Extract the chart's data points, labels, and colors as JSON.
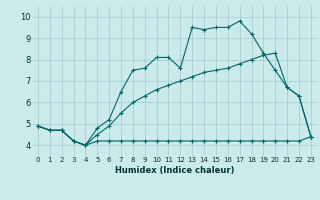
{
  "xlabel": "Humidex (Indice chaleur)",
  "xlim": [
    -0.5,
    23.5
  ],
  "ylim": [
    3.5,
    10.5
  ],
  "xticks": [
    0,
    1,
    2,
    3,
    4,
    5,
    6,
    7,
    8,
    9,
    10,
    11,
    12,
    13,
    14,
    15,
    16,
    17,
    18,
    19,
    20,
    21,
    22,
    23
  ],
  "yticks": [
    4,
    5,
    6,
    7,
    8,
    9,
    10
  ],
  "bg_color": "#cceaea",
  "line_color": "#006666",
  "grid_color": "#99cccc",
  "line1_x": [
    0,
    1,
    2,
    3,
    4,
    5,
    6,
    7,
    8,
    9,
    10,
    11,
    12,
    13,
    14,
    15,
    16,
    17,
    18,
    19,
    20,
    21,
    22,
    23
  ],
  "line1_y": [
    4.9,
    4.7,
    4.7,
    4.2,
    4.0,
    4.2,
    4.2,
    4.2,
    4.2,
    4.2,
    4.2,
    4.2,
    4.2,
    4.2,
    4.2,
    4.2,
    4.2,
    4.2,
    4.2,
    4.2,
    4.2,
    4.2,
    4.2,
    4.4
  ],
  "line2_x": [
    0,
    1,
    2,
    3,
    4,
    5,
    6,
    7,
    8,
    9,
    10,
    11,
    12,
    13,
    14,
    15,
    16,
    17,
    18,
    19,
    20,
    21,
    22,
    23
  ],
  "line2_y": [
    4.9,
    4.7,
    4.7,
    4.2,
    4.0,
    4.8,
    5.2,
    6.5,
    7.5,
    7.6,
    8.1,
    8.1,
    7.6,
    9.5,
    9.4,
    9.5,
    9.5,
    9.8,
    9.2,
    8.3,
    7.5,
    6.7,
    6.3,
    4.4
  ],
  "line3_x": [
    0,
    1,
    2,
    3,
    4,
    5,
    6,
    7,
    8,
    9,
    10,
    11,
    12,
    13,
    14,
    15,
    16,
    17,
    18,
    19,
    20,
    21,
    22,
    23
  ],
  "line3_y": [
    4.9,
    4.7,
    4.7,
    4.2,
    4.0,
    4.5,
    4.9,
    5.5,
    6.0,
    6.3,
    6.6,
    6.8,
    7.0,
    7.2,
    7.4,
    7.5,
    7.6,
    7.8,
    8.0,
    8.2,
    8.3,
    6.7,
    6.3,
    4.4
  ],
  "tick_fontsize": 5,
  "xlabel_fontsize": 6,
  "marker_size": 3,
  "linewidth": 0.8
}
